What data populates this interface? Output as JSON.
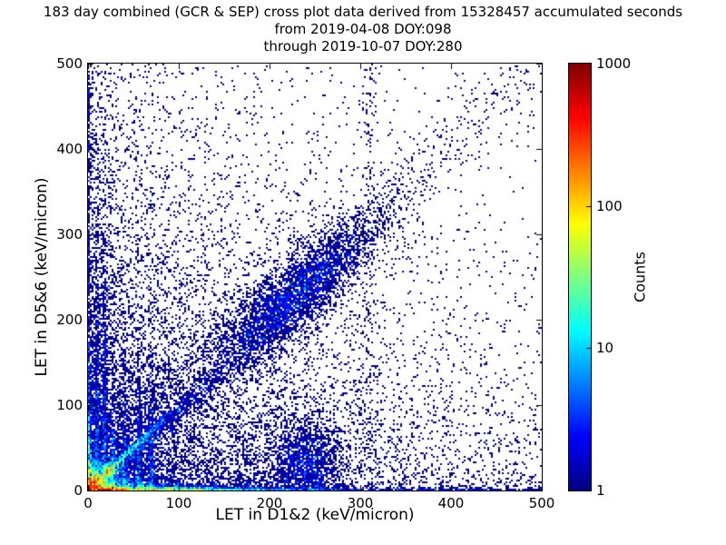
{
  "title": {
    "line1": "183 day combined (GCR & SEP) cross plot data derived from 15328457 accumulated seconds",
    "line2": "from 2019-04-08 DOY:098",
    "line3": "through 2019-10-07 DOY:280"
  },
  "chart_data": {
    "type": "scatter",
    "subtype": "2d-histogram-density-crossplot",
    "title": "183 day combined (GCR & SEP) cross plot data derived from 15328457 accumulated seconds",
    "subtitle_from": "from 2019-04-08 DOY:098",
    "subtitle_through": "through 2019-10-07 DOY:280",
    "days": 183,
    "accumulated_seconds": 15328457,
    "xlabel": "LET in D1&2 (keV/micron)",
    "ylabel": "LET in D5&6 (keV/micron)",
    "xlim": [
      0,
      500
    ],
    "ylim": [
      0,
      500
    ],
    "x_ticks": [
      0,
      100,
      200,
      300,
      400,
      500
    ],
    "y_ticks": [
      0,
      100,
      200,
      300,
      400,
      500
    ],
    "grid": false,
    "bin_size_px": 2,
    "point_color_min": "#000080",
    "seed": 7,
    "colorbar": {
      "label": "Counts",
      "scale": "log",
      "min": 1,
      "max": 1000,
      "ticks": [
        1,
        10,
        100,
        1000
      ],
      "colormap": "jet"
    },
    "density_features": [
      {
        "name": "origin-hotspot",
        "type": "radial",
        "A": 1200,
        "cx": 0,
        "cy": 0,
        "s": 5.5
      },
      {
        "name": "bottom-band-bright",
        "type": "exp2d",
        "A": 900,
        "xs": 40,
        "ys": 1.6
      },
      {
        "name": "bottom-band-mid",
        "type": "exp2d",
        "A": 25,
        "xs": 120,
        "ys": 1.5
      },
      {
        "name": "bottom-line-persistent",
        "type": "exp2d",
        "A": 2.5,
        "xs": 5000,
        "ys": 1.2
      },
      {
        "name": "bottom-cloud-wide",
        "type": "exp2d",
        "A": 1.3,
        "xs": 250,
        "ys": 6
      },
      {
        "name": "bottom-cloud-near",
        "type": "exp2d",
        "A": 3,
        "xs": 60,
        "ys": 15
      },
      {
        "name": "left-band-bright",
        "type": "exp2d",
        "A": 400,
        "xs": 1.5,
        "ys": 14
      },
      {
        "name": "left-band-mid",
        "type": "exp2d",
        "A": 15,
        "xs": 2,
        "ys": 60
      },
      {
        "name": "left-line-persistent",
        "type": "exp2d",
        "A": 2.5,
        "xs": 1.5,
        "ys": 5000
      },
      {
        "name": "left-cloud",
        "type": "exp2d",
        "A": 0.55,
        "xs": 50,
        "ys": 250
      },
      {
        "name": "diagonal-line-bright",
        "type": "diag",
        "A": 120,
        "slope": 1,
        "w": 2.2,
        "decay": 20
      },
      {
        "name": "diagonal-knot",
        "type": "gauss",
        "A": 130,
        "cx": 23,
        "cy": 23,
        "sx": 3,
        "sy": 3
      },
      {
        "name": "diagonal-band-broad",
        "type": "diag",
        "A": 10,
        "slope": 0.93,
        "w": 6,
        "decay": 45
      },
      {
        "name": "diagonal-sparse-wide",
        "type": "diag",
        "A": 0.5,
        "slope": 1,
        "w": 30,
        "decay": 250
      },
      {
        "name": "striations-inner",
        "type": "striations",
        "A": 5,
        "xs": [
          10,
          18
        ],
        "w": 1.8,
        "y_scale": 110
      },
      {
        "name": "striations-outer",
        "type": "striations",
        "A": 5,
        "xs": [
          27,
          40,
          56,
          70
        ],
        "w": 1.8,
        "y_scale": 55
      },
      {
        "name": "mid-streak",
        "type": "gauss",
        "A": 1.8,
        "cx": 240,
        "cy": 30,
        "sx": 20,
        "sy": 28
      },
      {
        "name": "upper-streak",
        "type": "striations",
        "A": 0.18,
        "xs": [
          310
        ],
        "w": 5,
        "y_scale": 3000
      },
      {
        "name": "heavy-ion-diagonal-cluster",
        "type": "diag_gauss",
        "A": 2.2,
        "center": 228,
        "su": 42,
        "sv": 26
      },
      {
        "name": "background-near",
        "type": "exp2d",
        "A": 0.8,
        "xs": 180,
        "ys": 180
      },
      {
        "name": "background-far",
        "type": "exp2d",
        "A": 0.05,
        "xs": 350,
        "ys": 350
      },
      {
        "name": "bottom-half-scatter",
        "type": "exp2d",
        "A": 0.45,
        "xs": 300,
        "ys": 80
      }
    ]
  }
}
